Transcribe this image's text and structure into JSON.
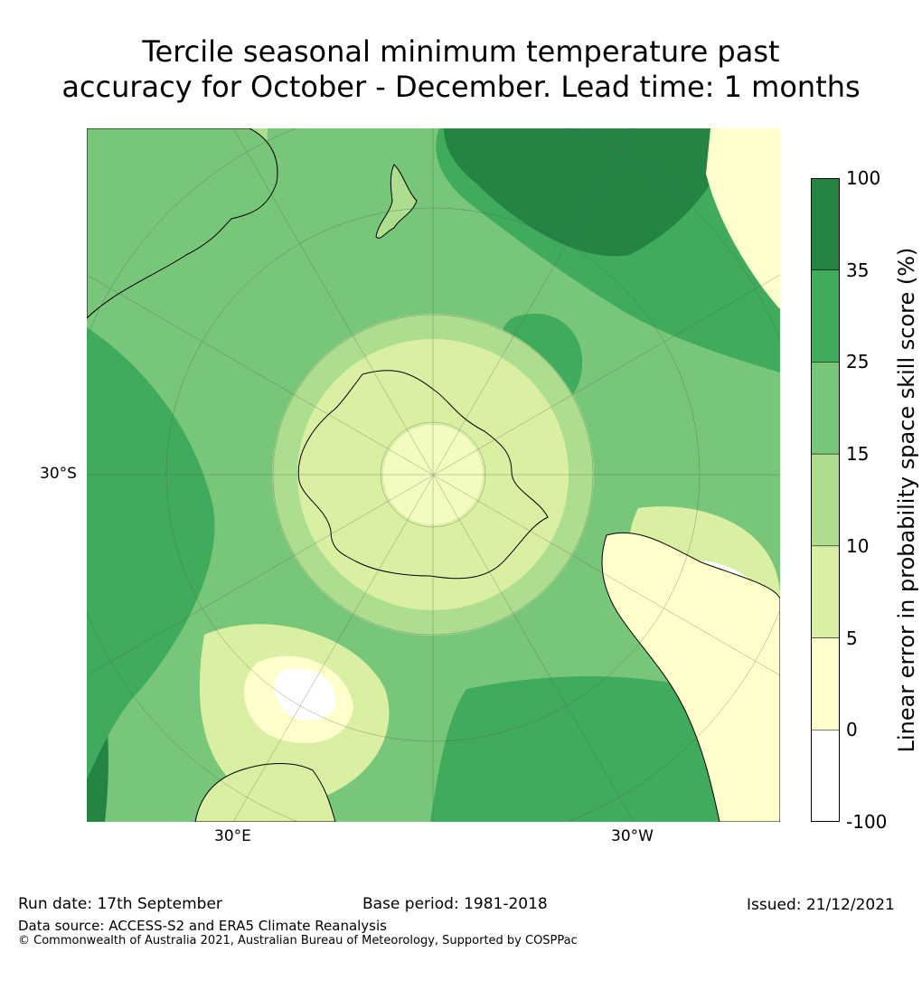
{
  "title_line1": "Tercile seasonal minimum temperature past",
  "title_line2": "accuracy for October - December. Lead time: 1 months",
  "map": {
    "labels": {
      "lat": "30°S",
      "lon_east": "30°E",
      "lon_west": "30°W"
    }
  },
  "colorbar": {
    "label": "Linear error in probability space skill score (%)",
    "ticks": [
      "100",
      "35",
      "25",
      "15",
      "10",
      "5",
      "0",
      "-100"
    ],
    "colors": [
      "#238443",
      "#41ab5d",
      "#78c679",
      "#addd8e",
      "#d9f0a3",
      "#ffffcc",
      "#ffffff"
    ]
  },
  "footer": {
    "run_date": "Run date: 17th September",
    "base_period": "Base period: 1981-2018",
    "issued": "Issued: 21/12/2021",
    "data_source": "Data source: ACCESS-S2 and ERA5 Climate Reanalysis",
    "copyright": "© Commonwealth of Australia 2021, Australian Bureau of Meteorology, Supported by COSPPac"
  }
}
